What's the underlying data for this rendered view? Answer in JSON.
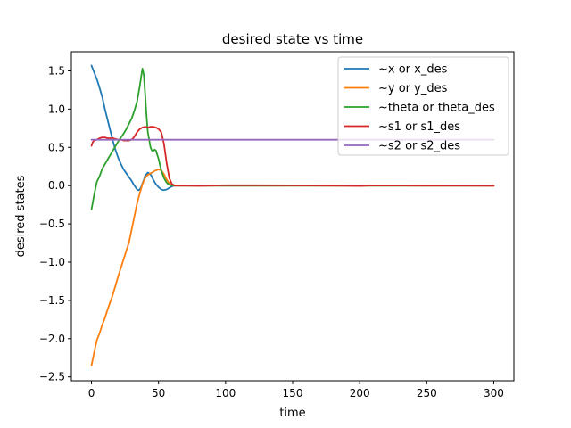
{
  "chart_data": {
    "type": "line",
    "title": "desired state vs time",
    "xlabel": "time",
    "ylabel": "desired states",
    "xlim": [
      -15,
      315
    ],
    "ylim": [
      -2.55,
      1.75
    ],
    "xticks": [
      0,
      50,
      100,
      150,
      200,
      250,
      300
    ],
    "yticks": [
      -2.5,
      -2.0,
      -1.5,
      -1.0,
      -0.5,
      0.0,
      0.5,
      1.0,
      1.5
    ],
    "ytick_labels": [
      "−2.5",
      "−2.0",
      "−1.5",
      "−1.0",
      "−0.5",
      "0.0",
      "0.5",
      "1.0",
      "1.5"
    ],
    "grid": false,
    "legend_position": "top-right",
    "series": [
      {
        "name": "~x or x_des",
        "color": "#1f77b4",
        "x": [
          0,
          2,
          4,
          6,
          8,
          10,
          12,
          14,
          16,
          18,
          20,
          22,
          24,
          26,
          28,
          30,
          32,
          34,
          35,
          36,
          37,
          38,
          39,
          40,
          42,
          44,
          46,
          48,
          50,
          52,
          54,
          56,
          58,
          60,
          62,
          65,
          70,
          80,
          100,
          150,
          200,
          250,
          300
        ],
        "y": [
          1.57,
          1.48,
          1.39,
          1.28,
          1.16,
          1.0,
          0.86,
          0.72,
          0.58,
          0.46,
          0.36,
          0.28,
          0.21,
          0.16,
          0.11,
          0.06,
          0.0,
          -0.05,
          -0.06,
          -0.05,
          -0.02,
          0.03,
          0.07,
          0.13,
          0.17,
          0.15,
          0.08,
          0.02,
          -0.02,
          -0.05,
          -0.06,
          -0.05,
          -0.03,
          -0.01,
          0.0,
          0.0,
          0.0,
          0.0,
          0.0,
          0.0,
          0.0,
          0.0,
          0.0
        ]
      },
      {
        "name": "~y or y_des",
        "color": "#ff7f0e",
        "x": [
          0,
          2,
          4,
          6,
          8,
          10,
          12,
          14,
          16,
          18,
          20,
          22,
          24,
          26,
          28,
          30,
          32,
          34,
          36,
          38,
          40,
          42,
          44,
          46,
          48,
          50,
          52,
          54,
          56,
          58,
          60,
          62,
          65,
          70,
          80,
          100,
          150,
          200,
          250,
          300
        ],
        "y": [
          -2.35,
          -2.18,
          -2.02,
          -1.93,
          -1.82,
          -1.73,
          -1.62,
          -1.52,
          -1.42,
          -1.3,
          -1.18,
          -1.07,
          -0.96,
          -0.85,
          -0.74,
          -0.57,
          -0.4,
          -0.23,
          -0.1,
          0.02,
          0.1,
          0.14,
          0.16,
          0.18,
          0.2,
          0.21,
          0.2,
          0.15,
          0.08,
          0.03,
          0.01,
          0.0,
          0.0,
          0.0,
          0.0,
          0.0,
          0.0,
          0.0,
          0.0,
          0.0
        ]
      },
      {
        "name": "~theta or theta_des",
        "color": "#2ca02c",
        "x": [
          0,
          2,
          4,
          6,
          8,
          10,
          12,
          14,
          16,
          18,
          20,
          22,
          24,
          26,
          28,
          30,
          32,
          34,
          36,
          37,
          38,
          39,
          40,
          41,
          42,
          43,
          44,
          45,
          46,
          47,
          48,
          50,
          52,
          54,
          56,
          58,
          60,
          62,
          65,
          70,
          80,
          100,
          150,
          200,
          250,
          300
        ],
        "y": [
          -0.31,
          -0.12,
          0.05,
          0.12,
          0.22,
          0.28,
          0.34,
          0.4,
          0.46,
          0.52,
          0.58,
          0.63,
          0.68,
          0.74,
          0.81,
          0.88,
          0.98,
          1.1,
          1.3,
          1.42,
          1.53,
          1.45,
          1.2,
          0.92,
          0.7,
          0.6,
          0.5,
          0.46,
          0.45,
          0.47,
          0.46,
          0.35,
          0.2,
          0.1,
          0.04,
          0.01,
          0.0,
          0.0,
          0.0,
          0.0,
          0.0,
          0.0,
          0.0,
          0.0,
          0.0,
          0.0
        ]
      },
      {
        "name": "~s1 or s1_des",
        "color": "#d62728",
        "x": [
          0,
          1,
          2,
          4,
          6,
          8,
          10,
          12,
          14,
          16,
          18,
          20,
          22,
          24,
          26,
          28,
          30,
          32,
          34,
          36,
          38,
          40,
          42,
          44,
          46,
          48,
          50,
          52,
          54,
          56,
          58,
          60,
          62,
          65,
          70,
          80,
          100,
          120,
          150,
          180,
          200,
          205,
          210,
          250,
          300
        ],
        "y": [
          0.52,
          0.57,
          0.59,
          0.6,
          0.62,
          0.63,
          0.63,
          0.62,
          0.62,
          0.62,
          0.61,
          0.6,
          0.6,
          0.59,
          0.59,
          0.59,
          0.6,
          0.64,
          0.7,
          0.74,
          0.76,
          0.77,
          0.76,
          0.77,
          0.77,
          0.76,
          0.74,
          0.7,
          0.55,
          0.3,
          0.1,
          0.02,
          0.0,
          0.0,
          0.0,
          -0.003,
          0.004,
          0.004,
          0.003,
          0.0,
          -0.005,
          0.0,
          0.003,
          0.0,
          -0.002
        ]
      },
      {
        "name": "~s2 or s2_des",
        "color": "#9467bd",
        "x": [
          0,
          2,
          4,
          6,
          10,
          20,
          50,
          100,
          150,
          200,
          250,
          300
        ],
        "y": [
          0.6,
          0.6,
          0.6,
          0.6,
          0.6,
          0.6,
          0.6,
          0.6,
          0.6,
          0.6,
          0.6,
          0.6
        ]
      }
    ]
  }
}
